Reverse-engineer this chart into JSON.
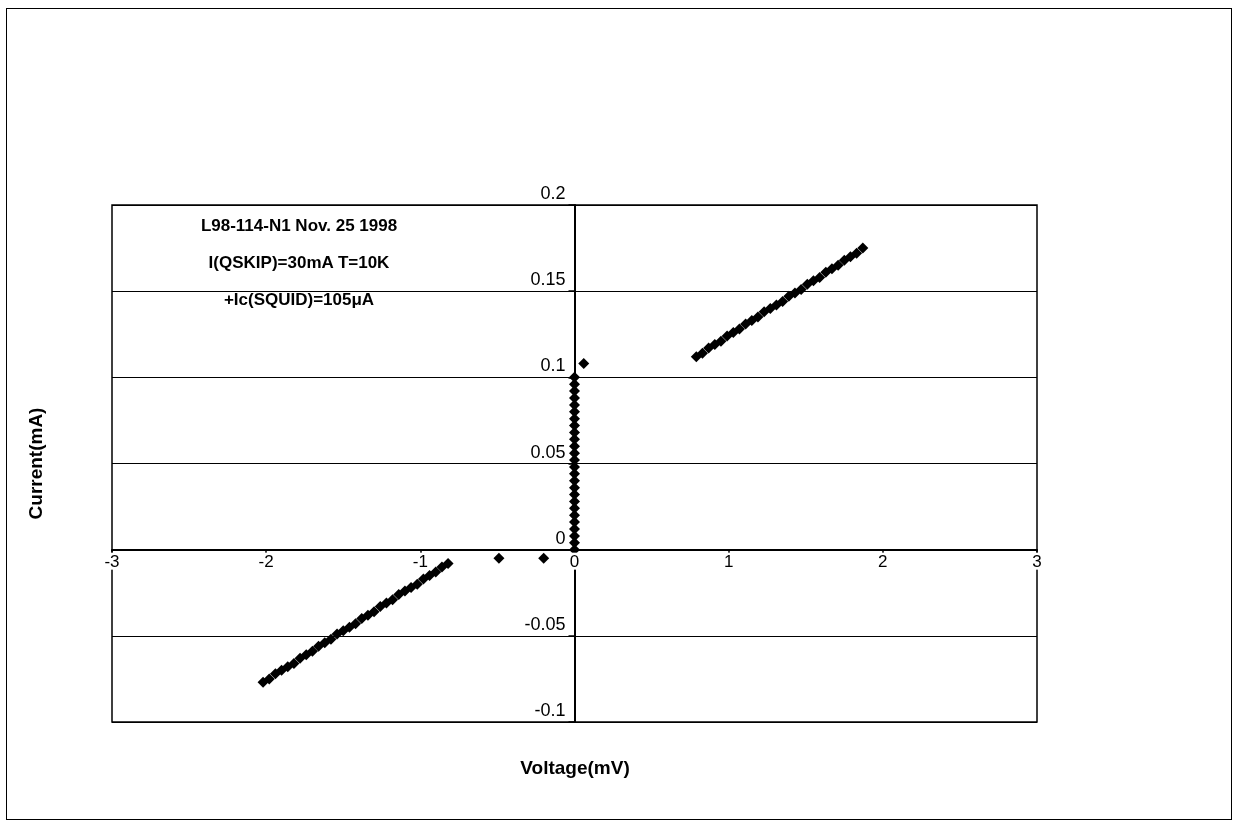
{
  "chart_data": {
    "type": "scatter",
    "xlabel": "Voltage(mV)",
    "ylabel": "Current(mA)",
    "annotations": [
      "L98-114-N1 Nov. 25 1998",
      "I(QSKIP)=30mA T=10K",
      "+Ic(SQUID)=105μA"
    ],
    "x": [
      -2.02,
      -1.98,
      -1.94,
      -1.9,
      -1.86,
      -1.82,
      -1.78,
      -1.74,
      -1.7,
      -1.66,
      -1.62,
      -1.58,
      -1.54,
      -1.5,
      -1.46,
      -1.42,
      -1.38,
      -1.34,
      -1.3,
      -1.26,
      -1.22,
      -1.18,
      -1.14,
      -1.1,
      -1.06,
      -1.02,
      -0.98,
      -0.94,
      -0.9,
      -0.86,
      -0.82,
      -0.49,
      -0.2,
      0,
      0,
      0,
      0,
      0,
      0,
      0,
      0,
      0,
      0,
      0,
      0,
      0,
      0,
      0,
      0,
      0,
      0,
      0,
      0,
      0,
      0,
      0,
      0,
      0,
      0,
      0.06,
      0.79,
      0.83,
      0.87,
      0.91,
      0.95,
      0.99,
      1.03,
      1.07,
      1.11,
      1.15,
      1.19,
      1.23,
      1.27,
      1.31,
      1.35,
      1.39,
      1.43,
      1.47,
      1.51,
      1.55,
      1.59,
      1.63,
      1.67,
      1.71,
      1.75,
      1.79,
      1.83,
      1.87
    ],
    "values": [
      -0.077,
      -0.075,
      -0.072,
      -0.07,
      -0.068,
      -0.066,
      -0.063,
      -0.061,
      -0.059,
      -0.056,
      -0.054,
      -0.052,
      -0.049,
      -0.047,
      -0.045,
      -0.043,
      -0.04,
      -0.038,
      -0.036,
      -0.033,
      -0.031,
      -0.029,
      -0.026,
      -0.024,
      -0.022,
      -0.02,
      -0.017,
      -0.015,
      -0.013,
      -0.01,
      -0.008,
      -0.005,
      -0.005,
      0,
      0.004,
      0.008,
      0.012,
      0.016,
      0.02,
      0.024,
      0.028,
      0.032,
      0.036,
      0.04,
      0.044,
      0.048,
      0.052,
      0.056,
      0.06,
      0.064,
      0.068,
      0.072,
      0.076,
      0.08,
      0.084,
      0.088,
      0.092,
      0.096,
      0.1,
      0.108,
      0.112,
      0.114,
      0.117,
      0.119,
      0.121,
      0.124,
      0.126,
      0.128,
      0.131,
      0.133,
      0.135,
      0.138,
      0.14,
      0.142,
      0.144,
      0.147,
      0.149,
      0.151,
      0.154,
      0.156,
      0.158,
      0.161,
      0.163,
      0.165,
      0.168,
      0.17,
      0.172,
      0.175
    ],
    "color": "#000000",
    "marker": "diamond",
    "xlim": [
      -3,
      3
    ],
    "xticks": [
      -3,
      -2,
      -1,
      0,
      1,
      2,
      3
    ],
    "ylim": [
      -0.1,
      0.2
    ],
    "yticks": [
      -0.1,
      -0.05,
      0,
      0.05,
      0.1,
      0.15,
      0.2
    ],
    "grid": "y"
  }
}
